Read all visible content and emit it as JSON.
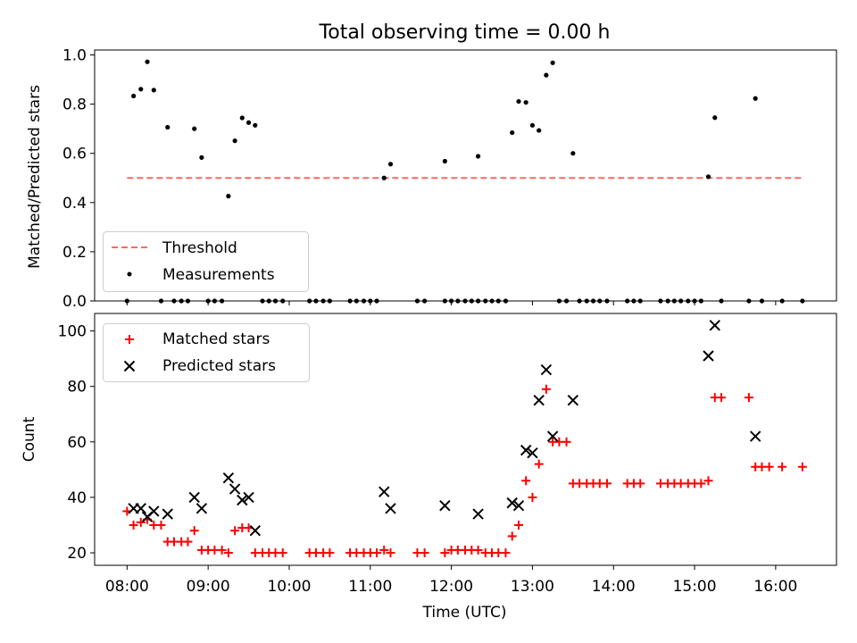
{
  "chart_data": [
    {
      "type": "scatter",
      "title": "Total observing time = 0.00 h",
      "xlabel": "",
      "ylabel": "Matched/Predicted stars",
      "xlim": [
        7.6,
        16.75
      ],
      "ylim": [
        0,
        1.02
      ],
      "yticks": [
        0.0,
        0.2,
        0.4,
        0.6,
        0.8,
        1.0
      ],
      "ytick_labels": [
        "0.0",
        "0.2",
        "0.4",
        "0.6",
        "0.8",
        "1.0"
      ],
      "threshold": {
        "name": "Threshold",
        "y": 0.5,
        "x_range": [
          8.0,
          16.33
        ],
        "color": "#ff6666"
      },
      "legend": {
        "position": "lower-left",
        "entries": [
          "Threshold",
          "Measurements"
        ]
      },
      "series": [
        {
          "name": "Measurements",
          "color": "#000000",
          "points": [
            [
              8.0,
              0.0
            ],
            [
              8.08,
              0.833
            ],
            [
              8.17,
              0.861
            ],
            [
              8.25,
              0.972
            ],
            [
              8.33,
              0.857
            ],
            [
              8.42,
              0.0
            ],
            [
              8.5,
              0.706
            ],
            [
              8.58,
              0.0
            ],
            [
              8.67,
              0.0
            ],
            [
              8.75,
              0.0
            ],
            [
              8.83,
              0.7
            ],
            [
              8.92,
              0.583
            ],
            [
              9.0,
              0.0
            ],
            [
              9.08,
              0.0
            ],
            [
              9.17,
              0.0
            ],
            [
              9.25,
              0.426
            ],
            [
              9.33,
              0.651
            ],
            [
              9.42,
              0.744
            ],
            [
              9.5,
              0.725
            ],
            [
              9.58,
              0.714
            ],
            [
              9.67,
              0.0
            ],
            [
              9.75,
              0.0
            ],
            [
              9.83,
              0.0
            ],
            [
              9.92,
              0.0
            ],
            [
              10.25,
              0.0
            ],
            [
              10.33,
              0.0
            ],
            [
              10.42,
              0.0
            ],
            [
              10.5,
              0.0
            ],
            [
              10.75,
              0.0
            ],
            [
              10.83,
              0.0
            ],
            [
              10.92,
              0.0
            ],
            [
              11.0,
              0.0
            ],
            [
              11.08,
              0.0
            ],
            [
              11.17,
              0.5
            ],
            [
              11.25,
              0.556
            ],
            [
              11.58,
              0.0
            ],
            [
              11.67,
              0.0
            ],
            [
              11.92,
              0.0
            ],
            [
              11.92,
              0.568
            ],
            [
              12.0,
              0.0
            ],
            [
              12.08,
              0.0
            ],
            [
              12.17,
              0.0
            ],
            [
              12.25,
              0.0
            ],
            [
              12.33,
              0.0
            ],
            [
              12.33,
              0.588
            ],
            [
              12.42,
              0.0
            ],
            [
              12.5,
              0.0
            ],
            [
              12.58,
              0.0
            ],
            [
              12.67,
              0.0
            ],
            [
              12.75,
              0.684
            ],
            [
              12.83,
              0.811
            ],
            [
              12.92,
              0.807
            ],
            [
              13.0,
              0.714
            ],
            [
              13.08,
              0.693
            ],
            [
              13.17,
              0.918
            ],
            [
              13.25,
              0.968
            ],
            [
              13.33,
              0.0
            ],
            [
              13.42,
              0.0
            ],
            [
              13.5,
              0.6
            ],
            [
              13.58,
              0.0
            ],
            [
              13.67,
              0.0
            ],
            [
              13.75,
              0.0
            ],
            [
              13.83,
              0.0
            ],
            [
              13.92,
              0.0
            ],
            [
              14.17,
              0.0
            ],
            [
              14.25,
              0.0
            ],
            [
              14.33,
              0.0
            ],
            [
              14.58,
              0.0
            ],
            [
              14.67,
              0.0
            ],
            [
              14.75,
              0.0
            ],
            [
              14.83,
              0.0
            ],
            [
              14.92,
              0.0
            ],
            [
              15.0,
              0.0
            ],
            [
              15.08,
              0.0
            ],
            [
              15.17,
              0.505
            ],
            [
              15.25,
              0.745
            ],
            [
              15.33,
              0.0
            ],
            [
              15.67,
              0.0
            ],
            [
              15.75,
              0.823
            ],
            [
              15.83,
              0.0
            ],
            [
              16.08,
              0.0
            ],
            [
              16.33,
              0.0
            ]
          ]
        }
      ]
    },
    {
      "type": "scatter",
      "title": "",
      "xlabel": "Time (UTC)",
      "ylabel": "Count",
      "xlim": [
        7.6,
        16.75
      ],
      "ylim": [
        15.5,
        106.3
      ],
      "xticks": [
        8,
        9,
        10,
        11,
        12,
        13,
        14,
        15,
        16
      ],
      "xtick_labels": [
        "08:00",
        "09:00",
        "10:00",
        "11:00",
        "12:00",
        "13:00",
        "14:00",
        "15:00",
        "16:00"
      ],
      "yticks": [
        20,
        40,
        60,
        80,
        100
      ],
      "ytick_labels": [
        "20",
        "40",
        "60",
        "80",
        "100"
      ],
      "legend": {
        "position": "upper-left",
        "entries": [
          "Matched stars",
          "Predicted stars"
        ]
      },
      "series": [
        {
          "name": "Matched stars",
          "color": "#ff0000",
          "marker": "plus",
          "points": [
            [
              8.0,
              35
            ],
            [
              8.08,
              30
            ],
            [
              8.17,
              31
            ],
            [
              8.25,
              32
            ],
            [
              8.33,
              30
            ],
            [
              8.42,
              30
            ],
            [
              8.5,
              24
            ],
            [
              8.58,
              24
            ],
            [
              8.67,
              24
            ],
            [
              8.75,
              24
            ],
            [
              8.83,
              28
            ],
            [
              8.92,
              21
            ],
            [
              9.0,
              21
            ],
            [
              9.08,
              21
            ],
            [
              9.17,
              21
            ],
            [
              9.25,
              20
            ],
            [
              9.33,
              28
            ],
            [
              9.42,
              29
            ],
            [
              9.5,
              29
            ],
            [
              9.58,
              20
            ],
            [
              9.67,
              20
            ],
            [
              9.75,
              20
            ],
            [
              9.83,
              20
            ],
            [
              9.92,
              20
            ],
            [
              10.25,
              20
            ],
            [
              10.33,
              20
            ],
            [
              10.42,
              20
            ],
            [
              10.5,
              20
            ],
            [
              10.75,
              20
            ],
            [
              10.83,
              20
            ],
            [
              10.92,
              20
            ],
            [
              11.0,
              20
            ],
            [
              11.08,
              20
            ],
            [
              11.17,
              21
            ],
            [
              11.25,
              20
            ],
            [
              11.58,
              20
            ],
            [
              11.67,
              20
            ],
            [
              11.92,
              20
            ],
            [
              12.0,
              21
            ],
            [
              12.08,
              21
            ],
            [
              12.17,
              21
            ],
            [
              12.25,
              21
            ],
            [
              12.33,
              21
            ],
            [
              12.42,
              20
            ],
            [
              12.5,
              20
            ],
            [
              12.58,
              20
            ],
            [
              12.67,
              20
            ],
            [
              12.75,
              26
            ],
            [
              12.83,
              30
            ],
            [
              12.92,
              46
            ],
            [
              13.0,
              40
            ],
            [
              13.08,
              52
            ],
            [
              13.17,
              79
            ],
            [
              13.25,
              60
            ],
            [
              13.33,
              60
            ],
            [
              13.42,
              60
            ],
            [
              13.5,
              45
            ],
            [
              13.58,
              45
            ],
            [
              13.67,
              45
            ],
            [
              13.75,
              45
            ],
            [
              13.83,
              45
            ],
            [
              13.92,
              45
            ],
            [
              14.17,
              45
            ],
            [
              14.25,
              45
            ],
            [
              14.33,
              45
            ],
            [
              14.58,
              45
            ],
            [
              14.67,
              45
            ],
            [
              14.75,
              45
            ],
            [
              14.83,
              45
            ],
            [
              14.92,
              45
            ],
            [
              15.0,
              45
            ],
            [
              15.08,
              45
            ],
            [
              15.17,
              46
            ],
            [
              15.25,
              76
            ],
            [
              15.33,
              76
            ],
            [
              15.67,
              76
            ],
            [
              15.75,
              51
            ],
            [
              15.83,
              51
            ],
            [
              15.92,
              51
            ],
            [
              16.08,
              51
            ],
            [
              16.33,
              51
            ]
          ]
        },
        {
          "name": "Predicted stars",
          "color": "#000000",
          "marker": "x",
          "points": [
            [
              8.08,
              36
            ],
            [
              8.17,
              36
            ],
            [
              8.25,
              33
            ],
            [
              8.33,
              35
            ],
            [
              8.5,
              34
            ],
            [
              8.83,
              40
            ],
            [
              8.92,
              36
            ],
            [
              9.25,
              47
            ],
            [
              9.33,
              43
            ],
            [
              9.42,
              39
            ],
            [
              9.5,
              40
            ],
            [
              9.58,
              28
            ],
            [
              11.17,
              42
            ],
            [
              11.25,
              36
            ],
            [
              11.92,
              37
            ],
            [
              12.33,
              34
            ],
            [
              12.75,
              38
            ],
            [
              12.83,
              37
            ],
            [
              12.92,
              57
            ],
            [
              13.0,
              56
            ],
            [
              13.08,
              75
            ],
            [
              13.17,
              86
            ],
            [
              13.25,
              62
            ],
            [
              13.5,
              75
            ],
            [
              15.17,
              91
            ],
            [
              15.25,
              102
            ],
            [
              15.75,
              62
            ]
          ]
        }
      ]
    }
  ]
}
